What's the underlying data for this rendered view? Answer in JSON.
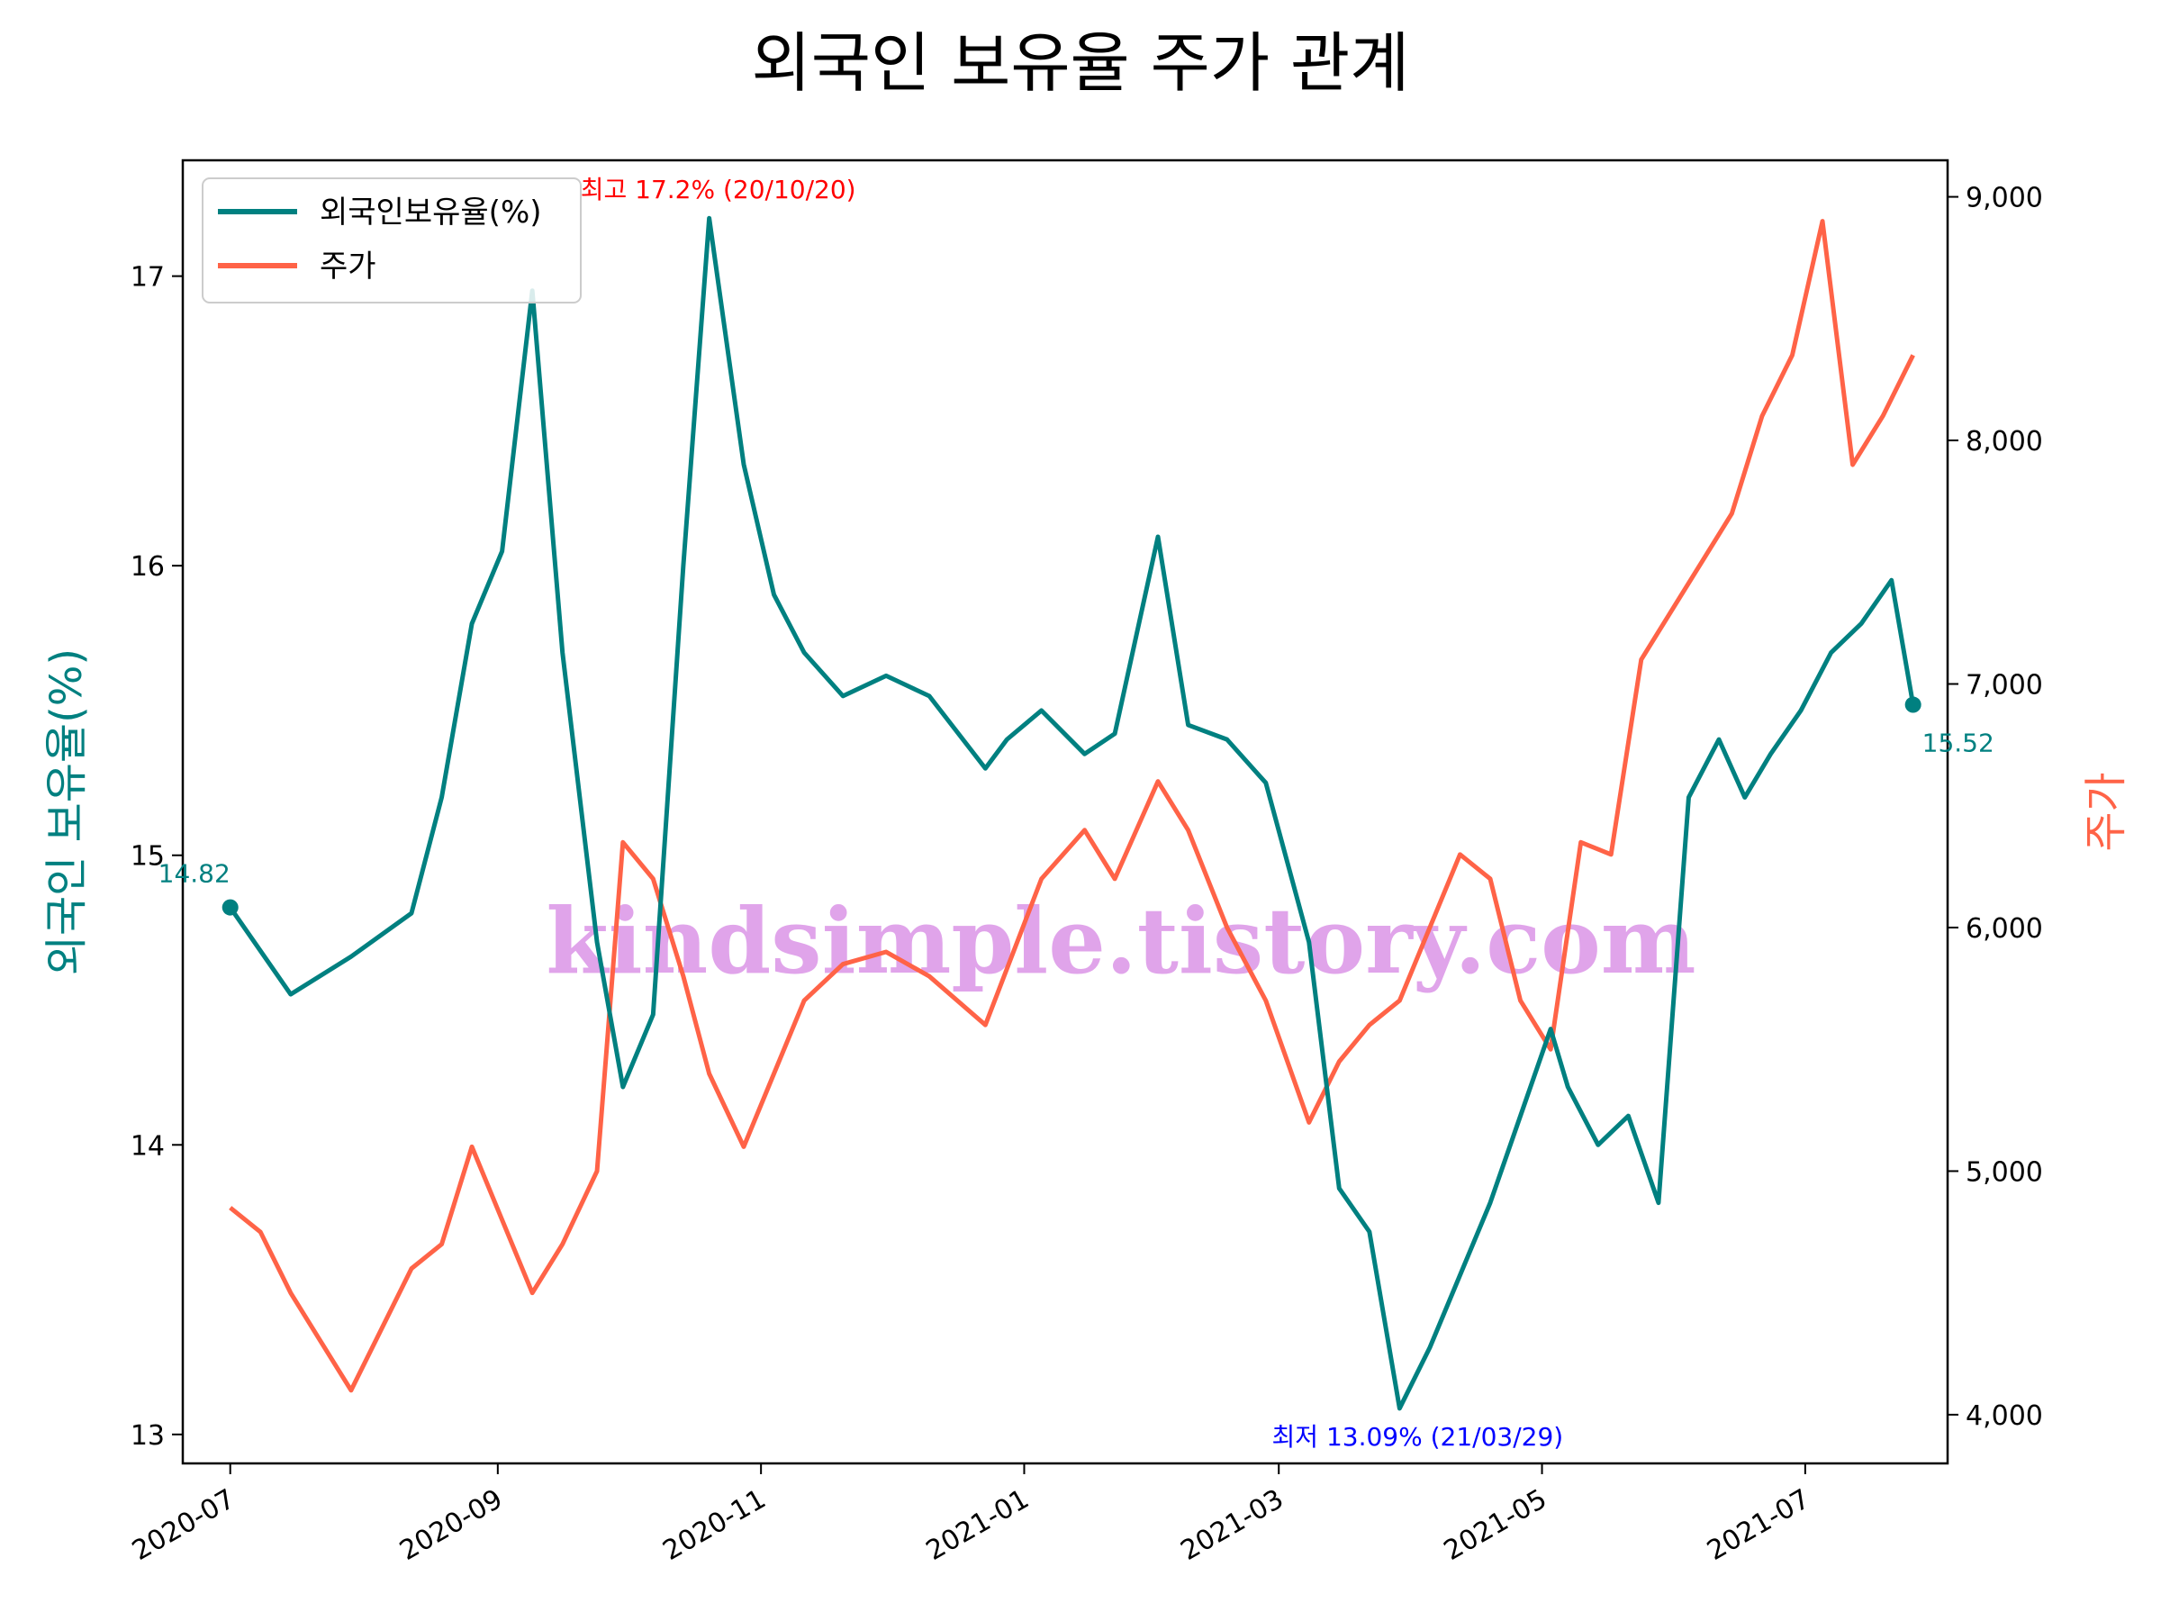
{
  "chart_data": {
    "type": "line",
    "title": "외국인 보유율 주가 관계",
    "ylabel_left": "외국인 보유율(%)",
    "ylabel_right": "주가",
    "xlabel": "",
    "colors": {
      "holding": "#008080",
      "price": "#ff6347",
      "max": "#ff0000",
      "min": "#0000ff",
      "watermark": "#d98ee6"
    },
    "x_ticks": [
      "2020-07",
      "2020-09",
      "2020-11",
      "2021-01",
      "2021-03",
      "2021-05",
      "2021-07"
    ],
    "y_left_ticks": [
      "13",
      "14",
      "15",
      "16",
      "17"
    ],
    "y_right_ticks": [
      "4,000",
      "5,000",
      "6,000",
      "7,000",
      "8,000",
      "9,000"
    ],
    "ylim_left": [
      12.9,
      17.4
    ],
    "ylim_right": [
      3800,
      9150
    ],
    "legend": [
      "외국인보유율(%)",
      "주가"
    ],
    "legend_position": "upper-left",
    "annotations": {
      "max": "최고 17.2% (20/10/20)",
      "min": "최저 13.09% (21/03/29)",
      "start": "14.82",
      "end": "15.52"
    },
    "watermark": "kindsimple.tistory.com",
    "series": [
      {
        "name": "외국인보유율(%)",
        "axis": "left",
        "x": [
          "2020-07-01",
          "2020-07-15",
          "2020-07-29",
          "2020-08-12",
          "2020-08-19",
          "2020-08-26",
          "2020-09-02",
          "2020-09-09",
          "2020-09-16",
          "2020-09-24",
          "2020-09-30",
          "2020-10-07",
          "2020-10-14",
          "2020-10-20",
          "2020-10-28",
          "2020-11-04",
          "2020-11-11",
          "2020-11-20",
          "2020-11-30",
          "2020-12-10",
          "2020-12-23",
          "2020-12-28",
          "2021-01-05",
          "2021-01-15",
          "2021-01-22",
          "2021-02-01",
          "2021-02-08",
          "2021-02-17",
          "2021-02-26",
          "2021-03-08",
          "2021-03-15",
          "2021-03-22",
          "2021-03-29",
          "2021-04-05",
          "2021-04-12",
          "2021-04-19",
          "2021-04-26",
          "2021-05-03",
          "2021-05-07",
          "2021-05-14",
          "2021-05-21",
          "2021-05-28",
          "2021-06-04",
          "2021-06-11",
          "2021-06-17",
          "2021-06-23",
          "2021-06-30",
          "2021-07-07",
          "2021-07-14",
          "2021-07-21",
          "2021-07-26"
        ],
        "values": [
          14.82,
          14.52,
          14.65,
          14.8,
          15.2,
          15.8,
          16.05,
          16.95,
          15.7,
          14.7,
          14.2,
          14.45,
          16.0,
          17.2,
          16.35,
          15.9,
          15.7,
          15.55,
          15.62,
          15.55,
          15.3,
          15.4,
          15.5,
          15.35,
          15.42,
          16.1,
          15.45,
          15.4,
          15.25,
          14.7,
          13.85,
          13.7,
          13.09,
          13.3,
          13.55,
          13.8,
          14.1,
          14.4,
          14.2,
          14.0,
          14.1,
          13.8,
          15.2,
          15.4,
          15.2,
          15.35,
          15.5,
          15.7,
          15.8,
          15.95,
          15.52
        ]
      },
      {
        "name": "주가",
        "axis": "right",
        "x": [
          "2020-07-01",
          "2020-07-08",
          "2020-07-15",
          "2020-07-22",
          "2020-07-29",
          "2020-08-05",
          "2020-08-12",
          "2020-08-19",
          "2020-08-26",
          "2020-09-02",
          "2020-09-09",
          "2020-09-16",
          "2020-09-24",
          "2020-09-30",
          "2020-10-07",
          "2020-10-14",
          "2020-10-20",
          "2020-10-28",
          "2020-11-04",
          "2020-11-11",
          "2020-11-20",
          "2020-11-30",
          "2020-12-10",
          "2020-12-23",
          "2021-01-05",
          "2021-01-15",
          "2021-01-22",
          "2021-02-01",
          "2021-02-08",
          "2021-02-17",
          "2021-02-26",
          "2021-03-08",
          "2021-03-15",
          "2021-03-22",
          "2021-03-29",
          "2021-04-05",
          "2021-04-12",
          "2021-04-19",
          "2021-04-26",
          "2021-05-03",
          "2021-05-10",
          "2021-05-17",
          "2021-05-24",
          "2021-05-31",
          "2021-06-07",
          "2021-06-14",
          "2021-06-21",
          "2021-06-28",
          "2021-07-05",
          "2021-07-12",
          "2021-07-19",
          "2021-07-26"
        ],
        "values": [
          4850,
          4750,
          4500,
          4300,
          4100,
          4350,
          4600,
          4700,
          5100,
          4800,
          4500,
          4700,
          5000,
          6350,
          6200,
          5800,
          5400,
          5100,
          5400,
          5700,
          5850,
          5900,
          5800,
          5600,
          6200,
          6400,
          6200,
          6600,
          6400,
          6000,
          5700,
          5200,
          5450,
          5600,
          5700,
          6000,
          6300,
          6200,
          5700,
          5500,
          6350,
          6300,
          7100,
          7300,
          7500,
          7700,
          8100,
          8350,
          8900,
          7900,
          8100,
          8350
        ]
      }
    ]
  }
}
